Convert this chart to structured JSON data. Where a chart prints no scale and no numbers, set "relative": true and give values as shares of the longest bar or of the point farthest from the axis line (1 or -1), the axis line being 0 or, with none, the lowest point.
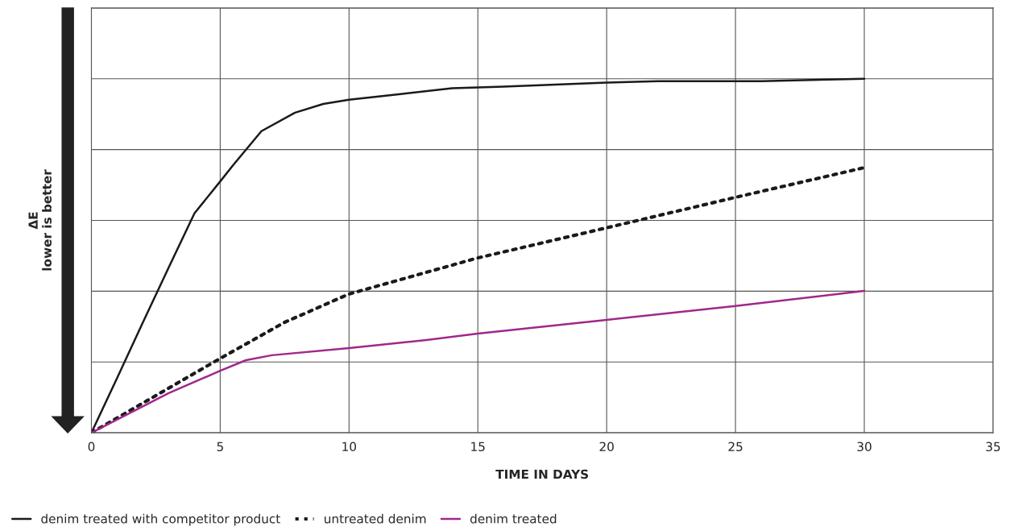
{
  "chart_data": {
    "type": "line",
    "xlabel": "TIME IN DAYS",
    "ylabel": "ΔE\nlower is better",
    "relative": true,
    "xlim": [
      0,
      35
    ],
    "xticks": [
      0,
      5,
      10,
      15,
      20,
      25,
      30,
      35
    ],
    "grid": true,
    "legend": "bottom",
    "series": [
      {
        "name": "denim treated with competitor product",
        "color": "#1a1a1a",
        "line_style": "solid",
        "x": [
          0,
          1,
          2,
          3,
          4,
          5,
          5.5,
          6.6,
          7.9,
          9,
          10,
          12,
          14,
          16,
          20,
          22,
          26,
          30
        ],
        "values": [
          0,
          0.155,
          0.312,
          0.467,
          0.62,
          0.71,
          0.756,
          0.852,
          0.904,
          0.929,
          0.941,
          0.957,
          0.973,
          0.978,
          0.989,
          0.993,
          0.993,
          1
        ]
      },
      {
        "name": "untreated denim",
        "color": "#1a1a1a",
        "line_style": "dotted",
        "x": [
          0,
          5,
          7.5,
          10,
          15,
          20,
          25,
          30
        ],
        "values": [
          0,
          0.21,
          0.312,
          0.392,
          0.494,
          0.579,
          0.665,
          0.749
        ]
      },
      {
        "name": "denim treated",
        "color": "#a0288c",
        "line_style": "solid",
        "x": [
          0,
          3,
          5,
          6,
          7,
          10,
          13,
          15,
          20,
          25,
          30
        ],
        "values": [
          0,
          0.112,
          0.175,
          0.205,
          0.219,
          0.239,
          0.262,
          0.28,
          0.319,
          0.358,
          0.401
        ]
      }
    ]
  }
}
